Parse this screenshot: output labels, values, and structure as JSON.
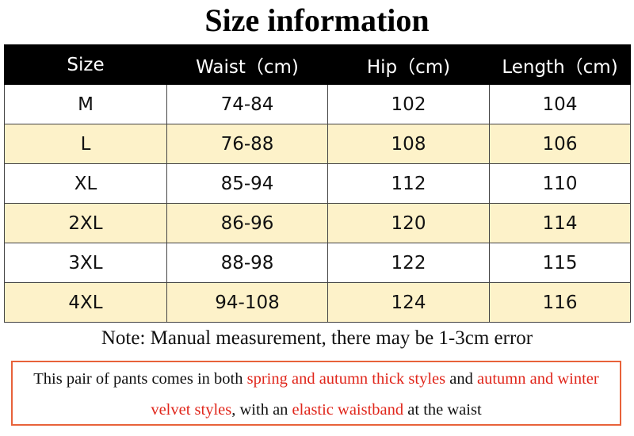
{
  "header": {
    "title": "Size information"
  },
  "table": {
    "columns": [
      "Size",
      "Waist（cm)",
      "Hip（cm)",
      "Length（cm)"
    ],
    "rows": [
      [
        "M",
        "74-84",
        "102",
        "104"
      ],
      [
        "L",
        "76-88",
        "108",
        "106"
      ],
      [
        "XL",
        "85-94",
        "112",
        "110"
      ],
      [
        "2XL",
        "86-96",
        "120",
        "114"
      ],
      [
        "3XL",
        "88-98",
        "122",
        "115"
      ],
      [
        "4XL",
        "94-108",
        "124",
        "116"
      ]
    ]
  },
  "note": "Note: Manual measurement, there may be 1-3cm error",
  "description": {
    "segments": [
      {
        "text": "This pair of pants comes in both ",
        "color": "#111111"
      },
      {
        "text": "spring and autumn thick styles",
        "color": "#e0261b"
      },
      {
        "text": " and ",
        "color": "#111111"
      },
      {
        "text": "autumn and winter velvet styles",
        "color": "#e0261b"
      },
      {
        "text": ", with an ",
        "color": "#111111"
      },
      {
        "text": "elastic waistband",
        "color": "#e0261b"
      },
      {
        "text": " at the waist",
        "color": "#111111"
      }
    ]
  }
}
